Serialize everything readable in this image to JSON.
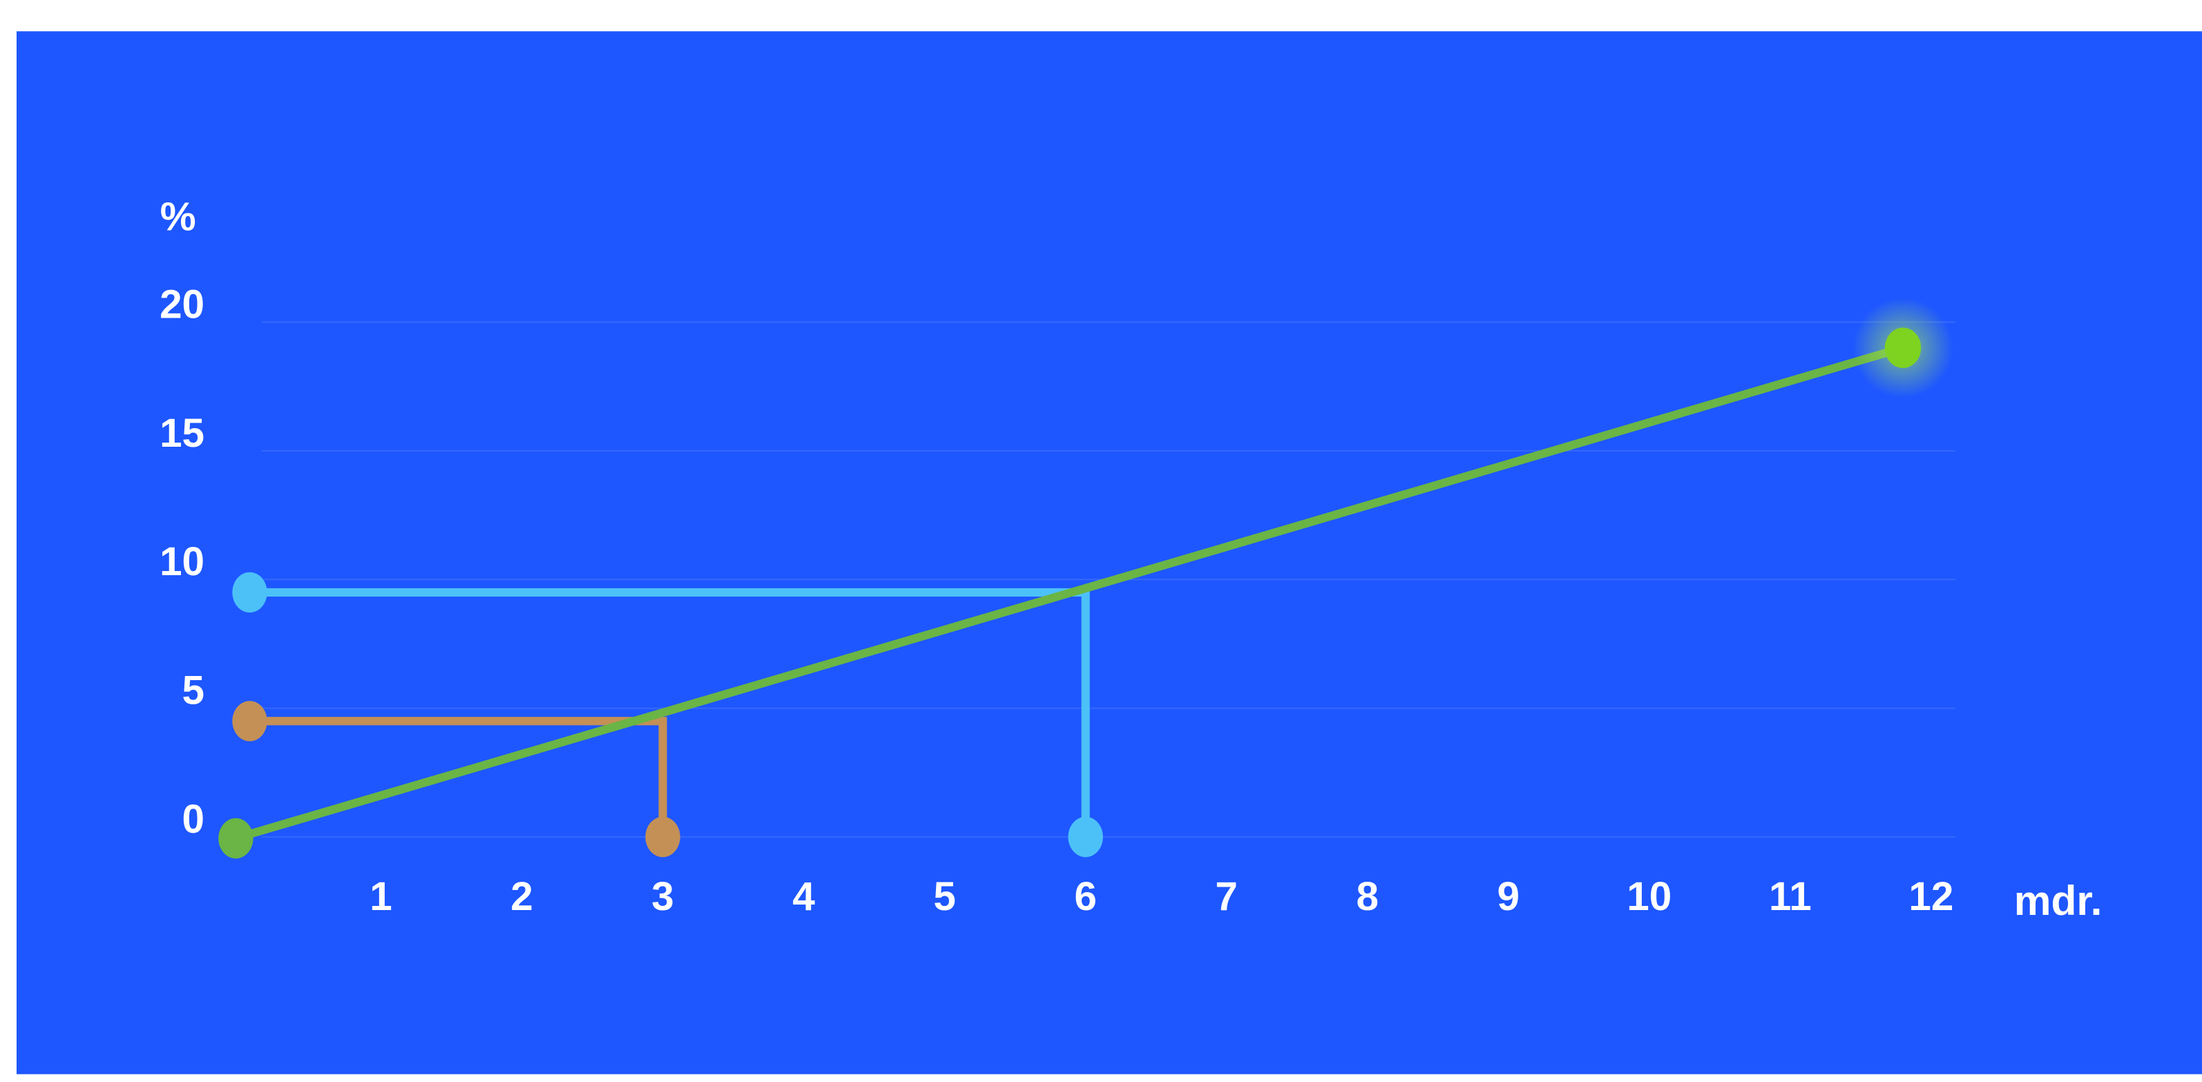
{
  "chart_data": {
    "type": "line",
    "ylabel": "%",
    "xlabel": "mdr.",
    "x_ticks": [
      1,
      2,
      3,
      4,
      5,
      6,
      7,
      8,
      9,
      10,
      11,
      12
    ],
    "y_ticks": [
      0,
      5,
      10,
      15,
      20
    ],
    "xlim": [
      0,
      12.3
    ],
    "ylim": [
      0,
      20
    ],
    "grid": true,
    "legend": "none",
    "series": [
      {
        "color": "#6ab545",
        "endpoint_color": "#7ed321",
        "x": [
          0,
          11.8
        ],
        "y": [
          0,
          19
        ]
      }
    ],
    "annotations": [
      {
        "x": 3,
        "y": 4.5,
        "color": "#c49056"
      },
      {
        "x": 6,
        "y": 9.5,
        "color": "#4cc1f7"
      }
    ],
    "colors": {
      "background": "#1e57ff",
      "gridline": "#3668ff",
      "text": "#ffffff"
    }
  }
}
